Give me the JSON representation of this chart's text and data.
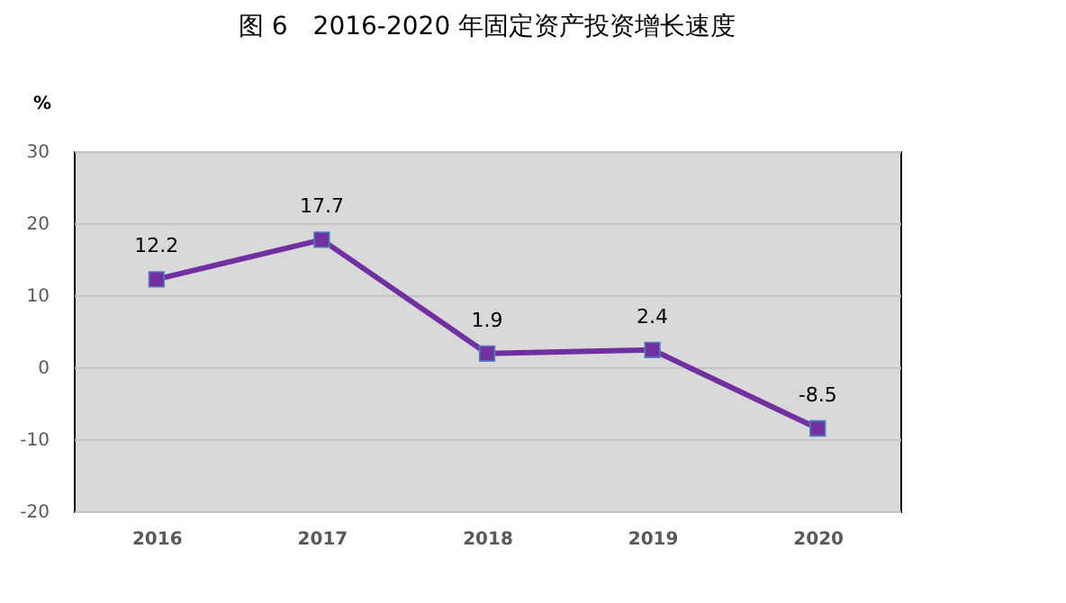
{
  "chart_data": {
    "type": "line",
    "title": "图 6　2016-2020 年固定资产投资增长速度",
    "ylabel": "%",
    "categories": [
      "2016",
      "2017",
      "2018",
      "2019",
      "2020"
    ],
    "series": [
      {
        "color": "#7030a0",
        "values": [
          12.2,
          17.7,
          1.9,
          2.4,
          -8.5
        ]
      }
    ],
    "ylim": [
      -20,
      30
    ],
    "yticks": [
      -20,
      -10,
      0,
      10,
      20,
      30
    ],
    "grid": "y",
    "marker": "square",
    "line_style": "solid",
    "data_labels": true,
    "legend": false
  }
}
